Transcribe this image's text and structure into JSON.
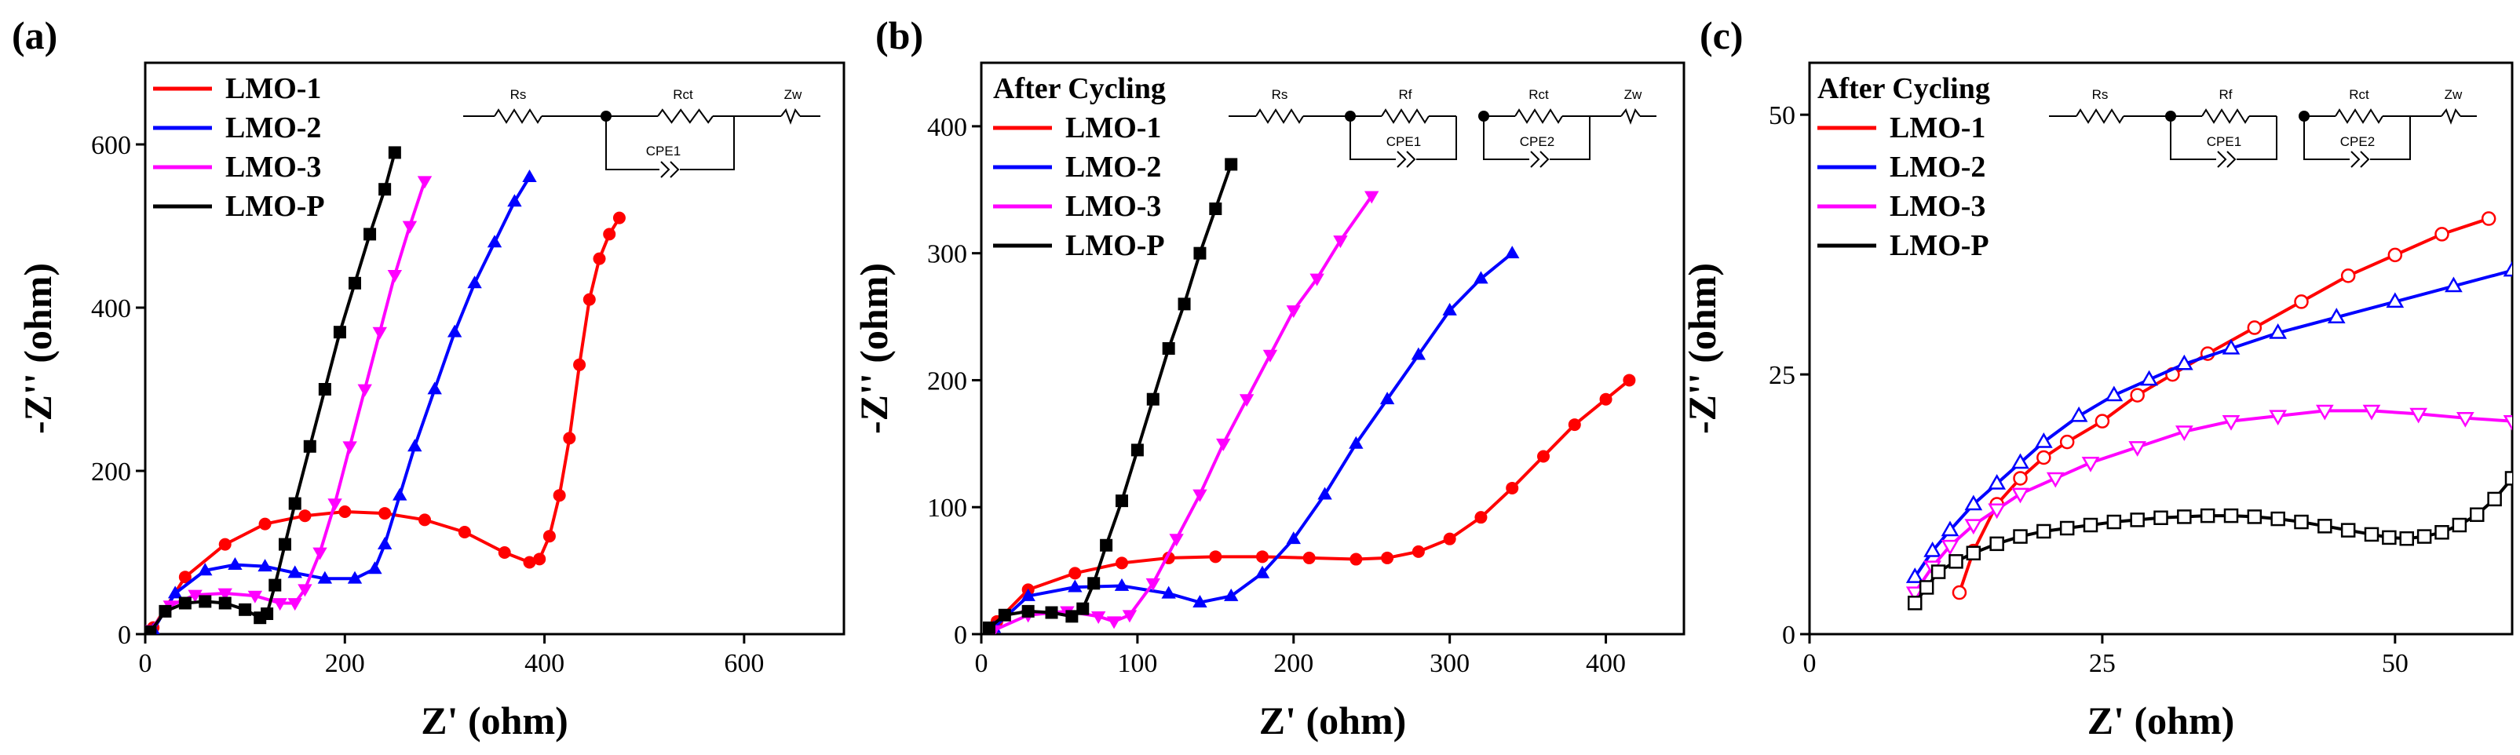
{
  "chart_data": [
    {
      "type": "scatter",
      "panel_label": "(a)",
      "xlabel": "Z' (ohm)",
      "ylabel": "-Z'' (ohm)",
      "xlim": [
        0,
        700
      ],
      "ylim": [
        0,
        700
      ],
      "xticks": [
        0,
        200,
        400,
        600
      ],
      "yticks": [
        0,
        200,
        400,
        600
      ],
      "after_label": "",
      "circuit": {
        "type": "simple",
        "labels": [
          "Rs",
          "Rct",
          "Zw",
          "CPE1"
        ]
      },
      "series": [
        {
          "name": "LMO-1",
          "color": "#ff0000",
          "marker": "circle-filled",
          "x": [
            8,
            40,
            80,
            120,
            160,
            200,
            240,
            280,
            320,
            360,
            385,
            395,
            405,
            415,
            425,
            435,
            445,
            455,
            465,
            475
          ],
          "y": [
            8,
            70,
            110,
            135,
            145,
            150,
            148,
            140,
            125,
            100,
            88,
            92,
            120,
            170,
            240,
            330,
            410,
            460,
            490,
            510
          ]
        },
        {
          "name": "LMO-2",
          "color": "#0000ff",
          "marker": "triangle-up-filled",
          "x": [
            8,
            30,
            60,
            90,
            120,
            150,
            180,
            210,
            230,
            240,
            255,
            270,
            290,
            310,
            330,
            350,
            370,
            385
          ],
          "y": [
            5,
            50,
            78,
            85,
            83,
            75,
            68,
            68,
            80,
            110,
            170,
            230,
            300,
            370,
            430,
            480,
            530,
            560
          ]
        },
        {
          "name": "LMO-3",
          "color": "#ff00ff",
          "marker": "triangle-down-filled",
          "x": [
            5,
            25,
            50,
            80,
            110,
            135,
            150,
            160,
            175,
            190,
            205,
            220,
            235,
            250,
            265,
            280
          ],
          "y": [
            5,
            35,
            48,
            50,
            47,
            38,
            38,
            55,
            100,
            160,
            230,
            300,
            370,
            440,
            500,
            555
          ]
        },
        {
          "name": "LMO-P",
          "color": "#000000",
          "marker": "square-filled",
          "x": [
            5,
            20,
            40,
            60,
            80,
            100,
            115,
            122,
            130,
            140,
            150,
            165,
            180,
            195,
            210,
            225,
            240,
            250
          ],
          "y": [
            3,
            28,
            38,
            40,
            38,
            30,
            20,
            25,
            60,
            110,
            160,
            230,
            300,
            370,
            430,
            490,
            545,
            590
          ]
        }
      ]
    },
    {
      "type": "scatter",
      "panel_label": "(b)",
      "xlabel": "Z' (ohm)",
      "ylabel": "-Z'' (ohm)",
      "xlim": [
        0,
        450
      ],
      "ylim": [
        0,
        450
      ],
      "xticks": [
        0,
        100,
        200,
        300,
        400
      ],
      "yticks": [
        0,
        100,
        200,
        300,
        400
      ],
      "after_label": "After Cycling",
      "circuit": {
        "type": "double",
        "labels": [
          "Rs",
          "Rf",
          "Rct",
          "Zw",
          "CPE1",
          "CPE2"
        ]
      },
      "series": [
        {
          "name": "LMO-1",
          "color": "#ff0000",
          "marker": "circle-filled",
          "x": [
            10,
            30,
            60,
            90,
            120,
            150,
            180,
            210,
            240,
            260,
            280,
            300,
            320,
            340,
            360,
            380,
            400,
            415
          ],
          "y": [
            10,
            35,
            48,
            56,
            60,
            61,
            61,
            60,
            59,
            60,
            65,
            75,
            92,
            115,
            140,
            165,
            185,
            200
          ]
        },
        {
          "name": "LMO-2",
          "color": "#0000ff",
          "marker": "triangle-up-filled",
          "x": [
            8,
            30,
            60,
            90,
            120,
            140,
            160,
            180,
            200,
            220,
            240,
            260,
            280,
            300,
            320,
            340
          ],
          "y": [
            5,
            30,
            37,
            38,
            32,
            25,
            30,
            48,
            75,
            110,
            150,
            185,
            220,
            255,
            280,
            300
          ]
        },
        {
          "name": "LMO-3",
          "color": "#ff00ff",
          "marker": "triangle-down-filled",
          "x": [
            8,
            30,
            55,
            75,
            85,
            95,
            110,
            125,
            140,
            155,
            170,
            185,
            200,
            215,
            230,
            250
          ],
          "y": [
            3,
            15,
            18,
            14,
            10,
            15,
            40,
            75,
            110,
            150,
            185,
            220,
            255,
            280,
            310,
            345
          ]
        },
        {
          "name": "LMO-P",
          "color": "#000000",
          "marker": "square-filled",
          "x": [
            5,
            15,
            30,
            45,
            58,
            65,
            72,
            80,
            90,
            100,
            110,
            120,
            130,
            140,
            150,
            160
          ],
          "y": [
            5,
            15,
            18,
            17,
            14,
            20,
            40,
            70,
            105,
            145,
            185,
            225,
            260,
            300,
            335,
            370
          ]
        }
      ]
    },
    {
      "type": "scatter",
      "panel_label": "(c)",
      "xlabel": "Z' (ohm)",
      "ylabel": "-Z'' (ohm)",
      "xlim": [
        0,
        60
      ],
      "ylim": [
        0,
        55
      ],
      "xticks": [
        0,
        25,
        50
      ],
      "yticks": [
        0,
        25,
        50
      ],
      "after_label": "After Cycling",
      "circuit": {
        "type": "double",
        "labels": [
          "Rs",
          "Rf",
          "Rct",
          "Zw",
          "CPE1",
          "CPE2"
        ]
      },
      "series": [
        {
          "name": "LMO-1",
          "color": "#ff0000",
          "marker": "circle-open",
          "x": [
            12.8,
            14,
            16,
            18,
            20,
            22,
            25,
            28,
            31,
            34,
            38,
            42,
            46,
            50,
            54,
            58
          ],
          "y": [
            4,
            8,
            12.5,
            15,
            17,
            18.5,
            20.5,
            23,
            25,
            27,
            29.5,
            32,
            34.5,
            36.5,
            38.5,
            40
          ]
        },
        {
          "name": "LMO-2",
          "color": "#0000ff",
          "marker": "triangle-up-open",
          "x": [
            9,
            10.5,
            12,
            14,
            16,
            18,
            20,
            23,
            26,
            29,
            32,
            36,
            40,
            45,
            50,
            55,
            60
          ],
          "y": [
            5.5,
            8,
            10,
            12.5,
            14.5,
            16.5,
            18.5,
            21,
            23,
            24.5,
            26,
            27.5,
            29,
            30.5,
            32,
            33.5,
            35
          ]
        },
        {
          "name": "LMO-3",
          "color": "#ff00ff",
          "marker": "triangle-down-open",
          "x": [
            9,
            10.5,
            12,
            14,
            16,
            18,
            21,
            24,
            28,
            32,
            36,
            40,
            44,
            48,
            52,
            56,
            60
          ],
          "y": [
            4,
            6.5,
            8.5,
            10.5,
            12,
            13.5,
            15,
            16.5,
            18,
            19.5,
            20.5,
            21,
            21.5,
            21.5,
            21.2,
            20.8,
            20.5
          ]
        },
        {
          "name": "LMO-P",
          "color": "#000000",
          "marker": "square-open",
          "x": [
            9,
            10,
            11,
            12.5,
            14,
            16,
            18,
            20,
            22,
            24,
            26,
            28,
            30,
            32,
            34,
            36,
            38,
            40,
            42,
            44,
            46,
            48,
            49.5,
            51,
            52.5,
            54,
            55.5,
            57,
            58.5,
            60
          ],
          "y": [
            3,
            4.5,
            6,
            7,
            7.8,
            8.7,
            9.4,
            9.9,
            10.2,
            10.5,
            10.8,
            11,
            11.2,
            11.3,
            11.4,
            11.4,
            11.3,
            11.1,
            10.8,
            10.4,
            10,
            9.6,
            9.3,
            9.2,
            9.4,
            9.8,
            10.5,
            11.5,
            13,
            15
          ]
        }
      ]
    }
  ]
}
